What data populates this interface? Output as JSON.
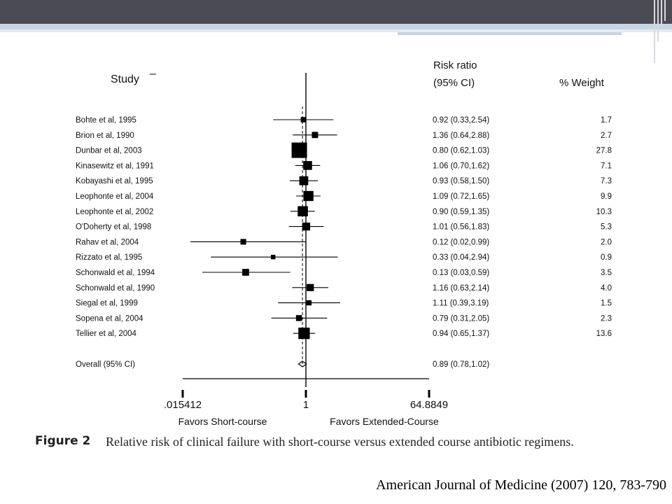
{
  "chart_data": {
    "type": "forest",
    "header": {
      "study": "Study",
      "study_mark": "–",
      "risk_ratio": "Risk ratio",
      "ci": "(95% CI)",
      "weight": "% Weight"
    },
    "rows": [
      {
        "study": "Bohte et al, 1995",
        "rr": 0.92,
        "lo": 0.33,
        "hi": 2.54,
        "rr_text": "0.92 (0.33,2.54)",
        "weight": 1.7,
        "weight_text": "1.7"
      },
      {
        "study": "Brion et al, 1990",
        "rr": 1.36,
        "lo": 0.64,
        "hi": 2.88,
        "rr_text": "1.36 (0.64,2.88)",
        "weight": 2.7,
        "weight_text": "2.7"
      },
      {
        "study": "Dunbar et al, 2003",
        "rr": 0.8,
        "lo": 0.62,
        "hi": 1.03,
        "rr_text": "0.80 (0.62,1.03)",
        "weight": 27.8,
        "weight_text": "27.8"
      },
      {
        "study": "Kinasewitz et al, 1991",
        "rr": 1.06,
        "lo": 0.7,
        "hi": 1.62,
        "rr_text": "1.06 (0.70,1.62)",
        "weight": 7.1,
        "weight_text": "7.1"
      },
      {
        "study": "Kobayashi et al, 1995",
        "rr": 0.93,
        "lo": 0.58,
        "hi": 1.5,
        "rr_text": "0.93 (0.58,1.50)",
        "weight": 7.3,
        "weight_text": "7.3"
      },
      {
        "study": "Leophonte et al, 2004",
        "rr": 1.09,
        "lo": 0.72,
        "hi": 1.65,
        "rr_text": "1.09 (0.72,1.65)",
        "weight": 9.9,
        "weight_text": "9.9"
      },
      {
        "study": "Leophonte et al, 2002",
        "rr": 0.9,
        "lo": 0.59,
        "hi": 1.35,
        "rr_text": "0.90 (0.59,1.35)",
        "weight": 10.3,
        "weight_text": "10.3"
      },
      {
        "study": "O'Doherty et al, 1998",
        "rr": 1.01,
        "lo": 0.56,
        "hi": 1.83,
        "rr_text": "1.01 (0.56,1.83)",
        "weight": 5.3,
        "weight_text": "5.3"
      },
      {
        "study": "Rahav et al, 2004",
        "rr": 0.12,
        "lo": 0.02,
        "hi": 0.99,
        "rr_text": "0.12 (0.02,0.99)",
        "weight": 2.0,
        "weight_text": "2.0"
      },
      {
        "study": "Rizzato et al, 1995",
        "rr": 0.33,
        "lo": 0.04,
        "hi": 2.94,
        "rr_text": "0.33 (0.04,2.94)",
        "weight": 0.9,
        "weight_text": "0.9"
      },
      {
        "study": "Schonwald et al, 1994",
        "rr": 0.13,
        "lo": 0.03,
        "hi": 0.59,
        "rr_text": "0.13 (0.03,0.59)",
        "weight": 3.5,
        "weight_text": "3.5"
      },
      {
        "study": "Schonwald et al, 1990",
        "rr": 1.16,
        "lo": 0.63,
        "hi": 2.14,
        "rr_text": "1.16 (0.63,2.14)",
        "weight": 4.0,
        "weight_text": "4.0"
      },
      {
        "study": "Siegal et al, 1999",
        "rr": 1.11,
        "lo": 0.39,
        "hi": 3.19,
        "rr_text": "1.11 (0.39,3.19)",
        "weight": 1.5,
        "weight_text": "1.5"
      },
      {
        "study": "Sopena et al, 2004",
        "rr": 0.79,
        "lo": 0.31,
        "hi": 2.05,
        "rr_text": "0.79 (0.31,2.05)",
        "weight": 2.3,
        "weight_text": "2.3"
      },
      {
        "study": "Tellier et al, 2004",
        "rr": 0.94,
        "lo": 0.65,
        "hi": 1.37,
        "rr_text": "0.94 (0.65,1.37)",
        "weight": 13.6,
        "weight_text": "13.6"
      }
    ],
    "overall": {
      "study": "Overall (95% CI)",
      "rr": 0.89,
      "lo": 0.78,
      "hi": 1.02,
      "rr_text": "0.89 (0.78,1.02)"
    },
    "x_axis": {
      "scale": "log",
      "range": [
        0.015412,
        64.8849
      ],
      "ticks": [
        {
          "value": 0.015412,
          "label": ".015412"
        },
        {
          "value": 1,
          "label": "1"
        },
        {
          "value": 64.8849,
          "label": "64.8849"
        }
      ],
      "favors_left": "Favors Short-course",
      "favors_right": "Favors Extended-Course"
    },
    "null_value": 1
  },
  "caption": {
    "label": "Figure 2",
    "text": "Relative risk of clinical failure with short-course versus extended course antibiotic regimens."
  },
  "citation": "American Journal of Medicine (2007) 120, 783-790"
}
